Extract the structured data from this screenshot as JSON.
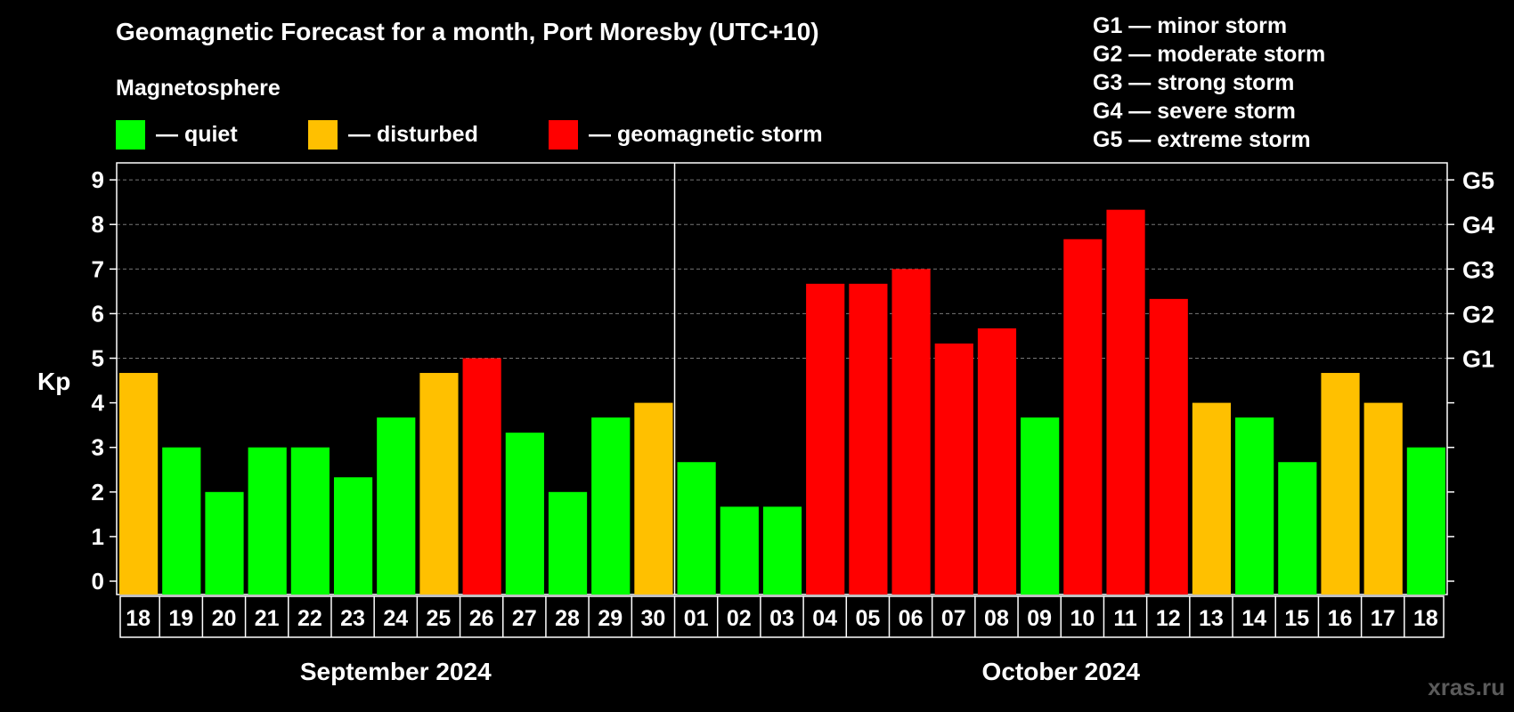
{
  "chart_data": {
    "type": "bar",
    "title": "Geomagnetic Forecast for a month, Port Moresby (UTC+10)",
    "ylabel": "Kp",
    "ylim": [
      0,
      9
    ],
    "yticks": [
      "0",
      "1",
      "2",
      "3",
      "4",
      "5",
      "6",
      "7",
      "8",
      "9"
    ],
    "g_levels": [
      {
        "label": "G1",
        "kp": 5
      },
      {
        "label": "G2",
        "kp": 6
      },
      {
        "label": "G3",
        "kp": 7
      },
      {
        "label": "G4",
        "kp": 8
      },
      {
        "label": "G5",
        "kp": 9
      }
    ],
    "months": [
      {
        "label": "September 2024",
        "start": 0,
        "end": 12
      },
      {
        "label": "October 2024",
        "start": 13,
        "end": 30
      }
    ],
    "categories": [
      "18",
      "19",
      "20",
      "21",
      "22",
      "23",
      "24",
      "25",
      "26",
      "27",
      "28",
      "29",
      "30",
      "01",
      "02",
      "03",
      "04",
      "05",
      "06",
      "07",
      "08",
      "09",
      "10",
      "11",
      "12",
      "13",
      "14",
      "15",
      "16",
      "17",
      "18"
    ],
    "values": [
      4.67,
      3.0,
      2.0,
      3.0,
      3.0,
      2.33,
      3.67,
      4.67,
      5.0,
      3.33,
      2.0,
      3.67,
      4.0,
      2.67,
      1.67,
      1.67,
      6.67,
      6.67,
      7.0,
      5.33,
      5.67,
      3.67,
      7.67,
      8.33,
      6.33,
      4.0,
      3.67,
      2.67,
      4.67,
      4.0,
      3.0
    ],
    "status": [
      "disturbed",
      "quiet",
      "quiet",
      "quiet",
      "quiet",
      "quiet",
      "quiet",
      "disturbed",
      "storm",
      "quiet",
      "quiet",
      "quiet",
      "disturbed",
      "quiet",
      "quiet",
      "quiet",
      "storm",
      "storm",
      "storm",
      "storm",
      "storm",
      "quiet",
      "storm",
      "storm",
      "storm",
      "disturbed",
      "quiet",
      "quiet",
      "disturbed",
      "disturbed",
      "quiet"
    ]
  },
  "colors": {
    "quiet": "#00ff00",
    "disturbed": "#ffc000",
    "storm": "#ff0000"
  },
  "legend": {
    "heading": "Magnetosphere",
    "quiet": "— quiet",
    "disturbed": "— disturbed",
    "storm": "— geomagnetic storm"
  },
  "gscale": [
    "G1 — minor storm",
    "G2 — moderate storm",
    "G3 — strong storm",
    "G4 — severe storm",
    "G5 — extreme storm"
  ],
  "watermark": "xras.ru"
}
